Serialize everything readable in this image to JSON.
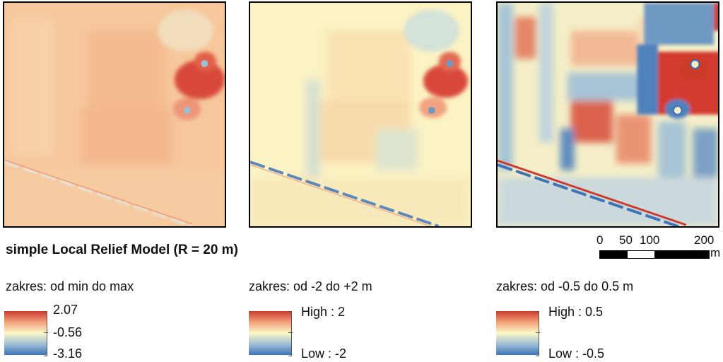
{
  "title": "simple Local Relief Model (R = 20 m)",
  "scale_bar": {
    "ticks": [
      "0",
      "50",
      "100",
      "200"
    ],
    "unit": "m"
  },
  "colors": {
    "high": "#cc3a2c",
    "mid": "#fbf7c7",
    "low": "#3d74b7"
  },
  "legends": [
    {
      "caption": "zakres: od min do max",
      "top_label": "2.07",
      "mid_label": "-0.56",
      "bottom_label": "-3.16"
    },
    {
      "caption": "zakres: od -2 do +2 m",
      "top_label": "High : 2",
      "bottom_label": "Low : -2"
    },
    {
      "caption": "zakres: od -0.5 do 0.5 m",
      "top_label": "High : 0.5",
      "bottom_label": "Low : -0.5"
    }
  ]
}
